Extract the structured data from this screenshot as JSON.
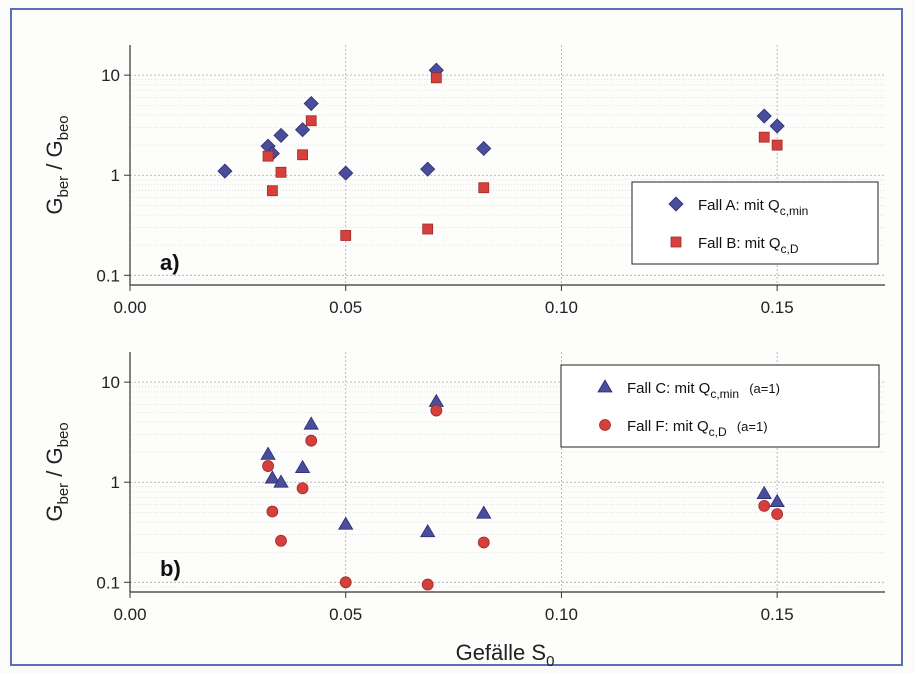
{
  "chart_data": [
    {
      "type": "scatter",
      "panel_label": "a)",
      "ylabel_main": "G",
      "ylabel_sub1": "ber",
      "ylabel_mid": " / G",
      "ylabel_sub2": "beo",
      "yscale": "log",
      "ylim": [
        0.08,
        20
      ],
      "xlim": [
        0.0,
        0.175
      ],
      "x_ticks": [
        "0.00",
        "0.05",
        "0.10",
        "0.15"
      ],
      "y_ticks": [
        "0.1",
        "1",
        "10"
      ],
      "grid": true,
      "legend_position": "right",
      "series": [
        {
          "name_main": "Fall A: mit Q",
          "name_sub": "c,min",
          "name_suffix": "",
          "marker": "diamond",
          "color": "#4a4d9c",
          "points": [
            [
              0.022,
              1.1
            ],
            [
              0.032,
              1.95
            ],
            [
              0.033,
              1.65
            ],
            [
              0.035,
              2.5
            ],
            [
              0.04,
              2.85
            ],
            [
              0.042,
              5.2
            ],
            [
              0.05,
              1.05
            ],
            [
              0.069,
              1.15
            ],
            [
              0.071,
              11.2
            ],
            [
              0.082,
              1.85
            ],
            [
              0.147,
              3.9
            ],
            [
              0.15,
              3.1
            ]
          ]
        },
        {
          "name_main": "Fall B: mit Q",
          "name_sub": "c,D",
          "name_suffix": "",
          "marker": "square",
          "color": "#d6403c",
          "points": [
            [
              0.032,
              1.55
            ],
            [
              0.033,
              0.7
            ],
            [
              0.035,
              1.07
            ],
            [
              0.04,
              1.6
            ],
            [
              0.042,
              3.5
            ],
            [
              0.05,
              0.25
            ],
            [
              0.069,
              0.29
            ],
            [
              0.071,
              9.4
            ],
            [
              0.082,
              0.75
            ],
            [
              0.147,
              2.4
            ],
            [
              0.15,
              2.0
            ]
          ]
        }
      ]
    },
    {
      "type": "scatter",
      "panel_label": "b)",
      "ylabel_main": "G",
      "ylabel_sub1": "ber",
      "ylabel_mid": " / G",
      "ylabel_sub2": "beo",
      "xlabel_main": "Gefälle S",
      "xlabel_sub": "0",
      "yscale": "log",
      "ylim": [
        0.08,
        20
      ],
      "xlim": [
        0.0,
        0.175
      ],
      "x_ticks": [
        "0.00",
        "0.05",
        "0.10",
        "0.15"
      ],
      "y_ticks": [
        "0.1",
        "1",
        "10"
      ],
      "grid": true,
      "legend_position": "top-right",
      "series": [
        {
          "name_main": "Fall C: mit Q",
          "name_sub": "c,min",
          "name_suffix": "(a=1)",
          "marker": "triangle",
          "color": "#4a4d9c",
          "points": [
            [
              0.032,
              1.9
            ],
            [
              0.033,
              1.1
            ],
            [
              0.035,
              1.0
            ],
            [
              0.04,
              1.4
            ],
            [
              0.042,
              3.8
            ],
            [
              0.05,
              0.38
            ],
            [
              0.069,
              0.32
            ],
            [
              0.071,
              6.4
            ],
            [
              0.082,
              0.49
            ],
            [
              0.147,
              0.77
            ],
            [
              0.15,
              0.64
            ]
          ]
        },
        {
          "name_main": "Fall F: mit Q",
          "name_sub": "c,D",
          "name_suffix": "(a=1)",
          "marker": "circle",
          "color": "#d6403c",
          "points": [
            [
              0.032,
              1.45
            ],
            [
              0.033,
              0.51
            ],
            [
              0.035,
              0.26
            ],
            [
              0.04,
              0.87
            ],
            [
              0.042,
              2.6
            ],
            [
              0.05,
              0.1
            ],
            [
              0.069,
              0.095
            ],
            [
              0.071,
              5.2
            ],
            [
              0.082,
              0.25
            ],
            [
              0.147,
              0.58
            ],
            [
              0.15,
              0.48
            ]
          ]
        }
      ]
    }
  ]
}
